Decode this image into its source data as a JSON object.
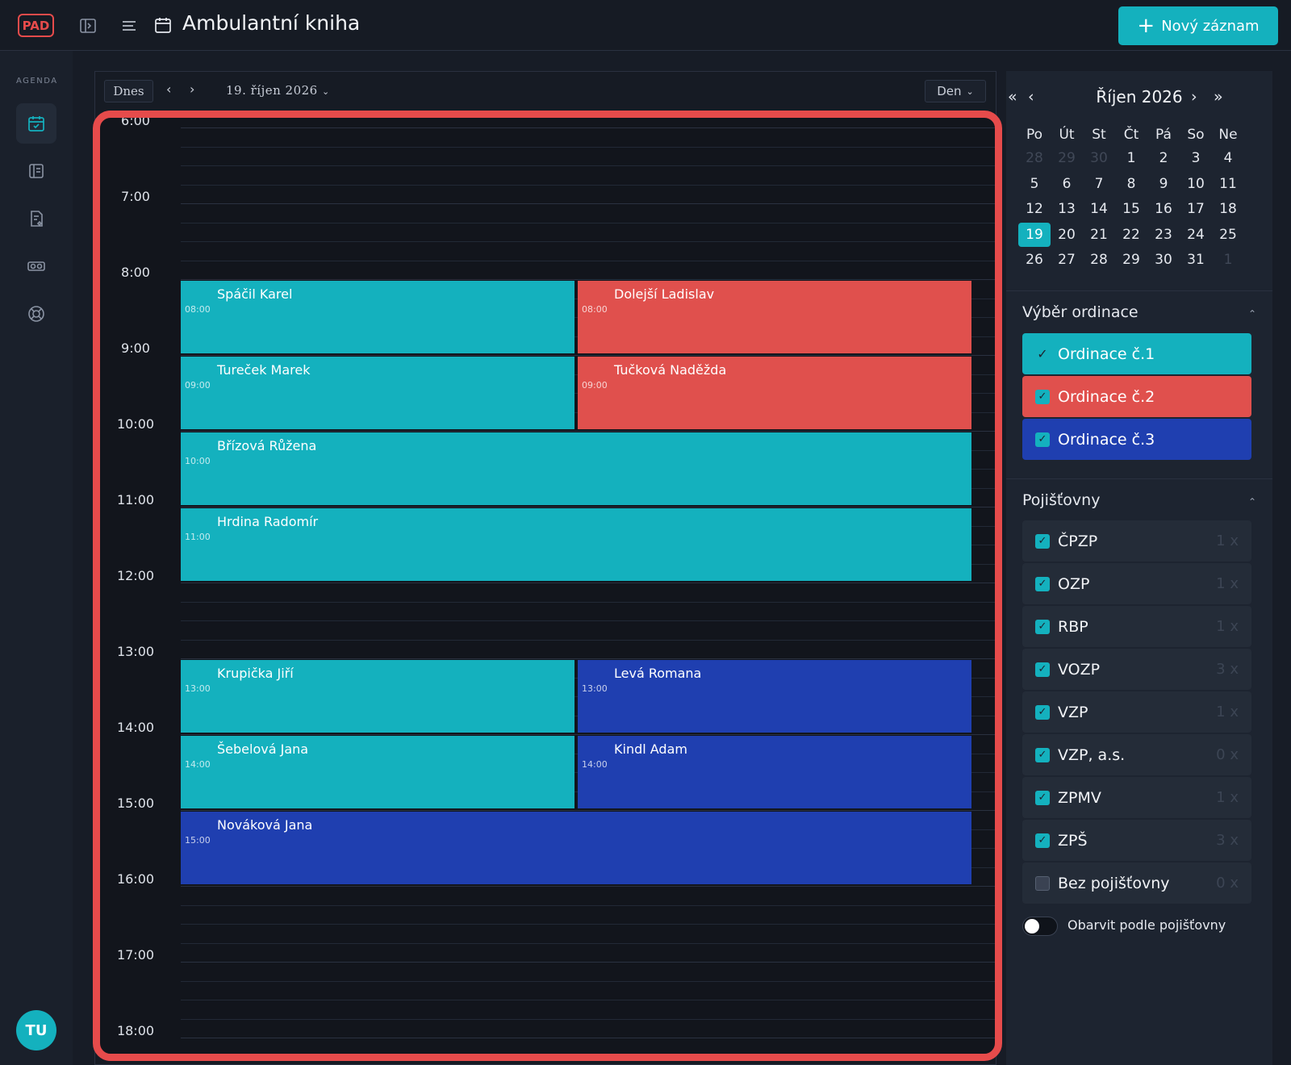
{
  "header": {
    "logo": "PAD",
    "title": "Ambulantní kniha",
    "new_button": "Nový záznam"
  },
  "sidebar": {
    "heading": "AGENDA",
    "avatar": "TU"
  },
  "toolbar": {
    "today": "Dnes",
    "prev": "‹",
    "next": "›",
    "date": "19. říjen 2026",
    "view": "Den"
  },
  "calendar": {
    "hours": [
      "6:00",
      "7:00",
      "8:00",
      "9:00",
      "10:00",
      "11:00",
      "12:00",
      "13:00",
      "14:00",
      "15:00",
      "16:00",
      "17:00",
      "18:00"
    ],
    "events": [
      {
        "name": "Spáčil Karel",
        "time": "08:00",
        "start": 8,
        "col": 0,
        "span": 1,
        "color": "#14b1be"
      },
      {
        "name": "Dolejší Ladislav",
        "time": "08:00",
        "start": 8,
        "col": 1,
        "span": 1,
        "color": "#e0504d"
      },
      {
        "name": "Tureček Marek",
        "time": "09:00",
        "start": 9,
        "col": 0,
        "span": 1,
        "color": "#14b1be"
      },
      {
        "name": "Tučková Naděžda",
        "time": "09:00",
        "start": 9,
        "col": 1,
        "span": 1,
        "color": "#e0504d"
      },
      {
        "name": "Břízová Růžena",
        "time": "10:00",
        "start": 10,
        "col": 0,
        "span": 2,
        "color": "#14b1be"
      },
      {
        "name": "Hrdina Radomír",
        "time": "11:00",
        "start": 11,
        "col": 0,
        "span": 2,
        "color": "#14b1be"
      },
      {
        "name": "Krupička Jiří",
        "time": "13:00",
        "start": 13,
        "col": 0,
        "span": 1,
        "color": "#14b1be"
      },
      {
        "name": "Levá Romana",
        "time": "13:00",
        "start": 13,
        "col": 1,
        "span": 1,
        "color": "#1f3fb0"
      },
      {
        "name": "Šebelová Jana",
        "time": "14:00",
        "start": 14,
        "col": 0,
        "span": 1,
        "color": "#14b1be"
      },
      {
        "name": "Kindl Adam",
        "time": "14:00",
        "start": 14,
        "col": 1,
        "span": 1,
        "color": "#1f3fb0"
      },
      {
        "name": "Nováková Jana",
        "time": "15:00",
        "start": 15,
        "col": 0,
        "span": 2,
        "color": "#1f3fb0"
      }
    ]
  },
  "mini_calendar": {
    "month": "Říjen 2026",
    "nav": {
      "first": "«",
      "prev": "‹",
      "next": "›",
      "last": "»"
    },
    "weekdays": [
      "Po",
      "Út",
      "St",
      "Čt",
      "Pá",
      "So",
      "Ne"
    ],
    "weeks": [
      [
        {
          "d": "28",
          "m": true
        },
        {
          "d": "29",
          "m": true
        },
        {
          "d": "30",
          "m": true
        },
        {
          "d": "1"
        },
        {
          "d": "2"
        },
        {
          "d": "3"
        },
        {
          "d": "4"
        }
      ],
      [
        {
          "d": "5"
        },
        {
          "d": "6"
        },
        {
          "d": "7"
        },
        {
          "d": "8"
        },
        {
          "d": "9"
        },
        {
          "d": "10"
        },
        {
          "d": "11"
        }
      ],
      [
        {
          "d": "12"
        },
        {
          "d": "13"
        },
        {
          "d": "14"
        },
        {
          "d": "15"
        },
        {
          "d": "16"
        },
        {
          "d": "17"
        },
        {
          "d": "18"
        }
      ],
      [
        {
          "d": "19",
          "s": true
        },
        {
          "d": "20"
        },
        {
          "d": "21"
        },
        {
          "d": "22"
        },
        {
          "d": "23"
        },
        {
          "d": "24"
        },
        {
          "d": "25"
        }
      ],
      [
        {
          "d": "26"
        },
        {
          "d": "27"
        },
        {
          "d": "28"
        },
        {
          "d": "29"
        },
        {
          "d": "30"
        },
        {
          "d": "31"
        },
        {
          "d": "1",
          "m": true
        }
      ]
    ]
  },
  "ordinace": {
    "title": "Výběr ordinace",
    "items": [
      {
        "label": "Ordinace č.1",
        "color": "#14b1be",
        "checked": true
      },
      {
        "label": "Ordinace č.2",
        "color": "#e0504d",
        "checked": true
      },
      {
        "label": "Ordinace č.3",
        "color": "#1f3fb0",
        "checked": true
      }
    ]
  },
  "pojistovny": {
    "title": "Pojišťovny",
    "items": [
      {
        "label": "ČPZP",
        "count": "1 x",
        "checked": true
      },
      {
        "label": "OZP",
        "count": "1 x",
        "checked": true
      },
      {
        "label": "RBP",
        "count": "1 x",
        "checked": true
      },
      {
        "label": "VOZP",
        "count": "3 x",
        "checked": true
      },
      {
        "label": "VZP",
        "count": "1 x",
        "checked": true
      },
      {
        "label": "VZP, a.s.",
        "count": "0 x",
        "checked": true
      },
      {
        "label": "ZPMV",
        "count": "1 x",
        "checked": true
      },
      {
        "label": "ZPŠ",
        "count": "3 x",
        "checked": true
      },
      {
        "label": "Bez pojišťovny",
        "count": "0 x",
        "checked": false
      }
    ],
    "toggle_label": "Obarvit podle pojišťovny",
    "toggle_on": false
  }
}
